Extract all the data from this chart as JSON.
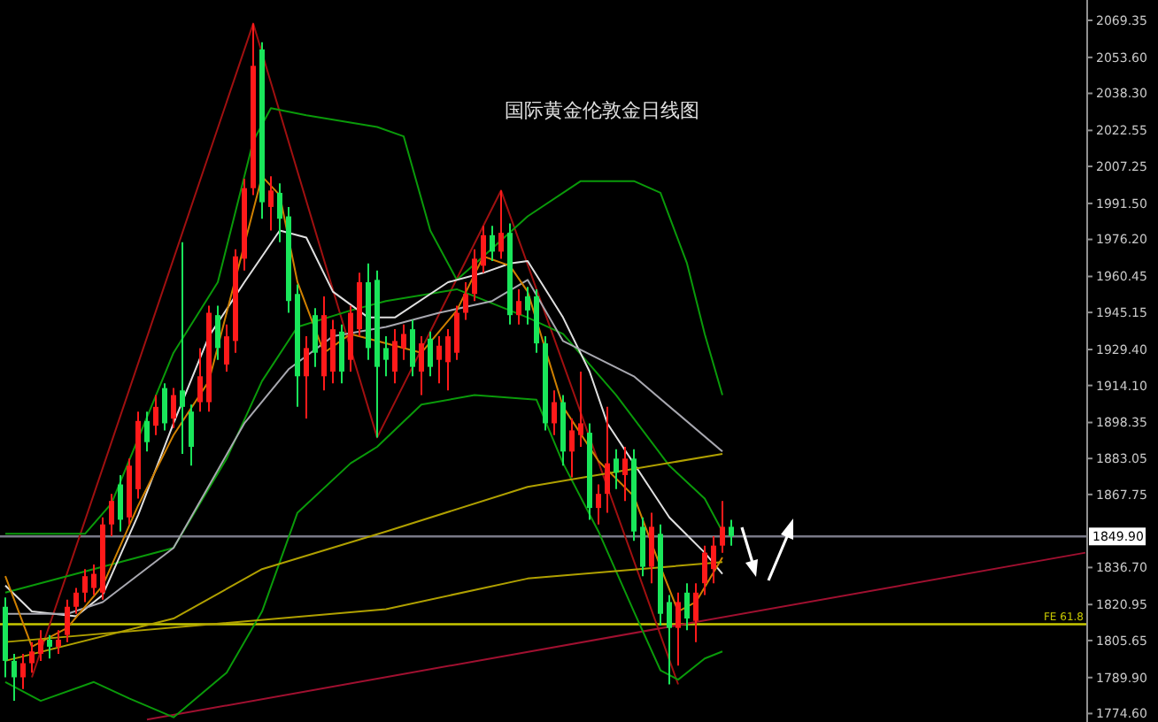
{
  "chart_data": {
    "type": "candlestick",
    "title": "国际黄金伦敦金日线图",
    "categories": [
      null,
      null,
      null,
      null,
      null,
      null,
      null,
      null,
      null,
      null,
      null,
      null,
      null,
      null,
      null,
      null,
      null,
      null,
      null,
      null,
      null,
      null,
      null,
      null,
      null,
      null,
      null,
      null,
      null,
      null,
      null,
      null,
      null,
      null,
      null,
      null,
      null,
      null,
      null,
      null,
      null,
      null,
      null,
      null,
      null,
      null,
      null,
      null,
      null,
      null,
      null,
      null,
      null,
      null,
      null,
      null,
      null,
      null,
      null,
      null,
      null,
      null,
      null,
      null,
      null,
      null,
      null,
      null,
      null,
      null,
      null,
      null,
      null,
      null,
      null,
      null,
      null,
      null,
      null,
      null,
      null,
      null,
      null,
      null,
      null,
      null,
      null,
      null,
      null,
      null,
      null,
      null,
      null,
      null,
      null,
      null,
      null,
      null,
      null,
      null,
      null,
      null,
      null,
      null,
      null,
      null,
      null,
      null,
      null,
      null,
      null,
      null,
      null,
      null,
      null,
      null,
      null,
      null,
      null,
      null,
      null,
      null,
      null
    ],
    "ohlc": [
      [
        1820,
        1824,
        1790,
        1797
      ],
      [
        1797,
        1800,
        1780,
        1790
      ],
      [
        1790,
        1800,
        1785,
        1796
      ],
      [
        1796,
        1805,
        1792,
        1801
      ],
      [
        1800,
        1810,
        1797,
        1806
      ],
      [
        1806,
        1808,
        1798,
        1803
      ],
      [
        1803,
        1810,
        1800,
        1806
      ],
      [
        1808,
        1823,
        1805,
        1820
      ],
      [
        1820,
        1828,
        1817,
        1826
      ],
      [
        1826,
        1836,
        1822,
        1833
      ],
      [
        1828,
        1838,
        1825,
        1834
      ],
      [
        1826,
        1858,
        1823,
        1855
      ],
      [
        1855,
        1868,
        1850,
        1865
      ],
      [
        1872,
        1876,
        1852,
        1857
      ],
      [
        1858,
        1883,
        1855,
        1880
      ],
      [
        1870,
        1903,
        1866,
        1899
      ],
      [
        1899,
        1903,
        1886,
        1890
      ],
      [
        1897,
        1910,
        1893,
        1905
      ],
      [
        1913,
        1915,
        1895,
        1898
      ],
      [
        1900,
        1913,
        1896,
        1910
      ],
      [
        1912,
        1975,
        1885,
        1905
      ],
      [
        1903,
        1906,
        1880,
        1888
      ],
      [
        1907,
        1930,
        1903,
        1918
      ],
      [
        1907,
        1948,
        1903,
        1945
      ],
      [
        1944,
        1948,
        1925,
        1930
      ],
      [
        1923,
        1940,
        1920,
        1935
      ],
      [
        1933,
        1972,
        1928,
        1969
      ],
      [
        1968,
        2002,
        1963,
        1998
      ],
      [
        1998,
        2068,
        1995,
        2050
      ],
      [
        2057,
        2060,
        1985,
        1992
      ],
      [
        1990,
        2003,
        1980,
        1997
      ],
      [
        1996,
        2000,
        1975,
        1985
      ],
      [
        1986,
        1990,
        1945,
        1950
      ],
      [
        1953,
        1957,
        1905,
        1918
      ],
      [
        1918,
        1935,
        1900,
        1930
      ],
      [
        1944,
        1947,
        1922,
        1928
      ],
      [
        1918,
        1952,
        1912,
        1944
      ],
      [
        1920,
        1942,
        1915,
        1938
      ],
      [
        1937,
        1940,
        1915,
        1920
      ],
      [
        1925,
        1948,
        1920,
        1945
      ],
      [
        1938,
        1962,
        1935,
        1958
      ],
      [
        1958,
        1966,
        1925,
        1930
      ],
      [
        1959,
        1963,
        1892,
        1922
      ],
      [
        1930,
        1935,
        1918,
        1925
      ],
      [
        1920,
        1938,
        1915,
        1933
      ],
      [
        1930,
        1940,
        1925,
        1936
      ],
      [
        1938,
        1942,
        1918,
        1922
      ],
      [
        1920,
        1935,
        1910,
        1932
      ],
      [
        1934,
        1937,
        1918,
        1922
      ],
      [
        1925,
        1935,
        1915,
        1931
      ],
      [
        1924,
        1938,
        1912,
        1935
      ],
      [
        1928,
        1948,
        1925,
        1945
      ],
      [
        1945,
        1958,
        1942,
        1953
      ],
      [
        1953,
        1972,
        1950,
        1968
      ],
      [
        1965,
        1982,
        1962,
        1978
      ],
      [
        1978,
        1982,
        1967,
        1971
      ],
      [
        1971,
        1997,
        1968,
        1979
      ],
      [
        1979,
        1983,
        1940,
        1944
      ],
      [
        1944,
        1955,
        1940,
        1950
      ],
      [
        1952,
        1956,
        1940,
        1946
      ],
      [
        1952,
        1955,
        1928,
        1932
      ],
      [
        1932,
        1935,
        1895,
        1898
      ],
      [
        1898,
        1912,
        1893,
        1907
      ],
      [
        1907,
        1910,
        1880,
        1886
      ],
      [
        1886,
        1900,
        1875,
        1895
      ],
      [
        1893,
        1920,
        1888,
        1898
      ],
      [
        1894,
        1898,
        1857,
        1862
      ],
      [
        1862,
        1872,
        1855,
        1868
      ],
      [
        1868,
        1905,
        1860,
        1881
      ],
      [
        1883,
        1887,
        1870,
        1877
      ],
      [
        1876,
        1888,
        1865,
        1883
      ],
      [
        1883,
        1887,
        1848,
        1852
      ],
      [
        1854,
        1858,
        1833,
        1837
      ],
      [
        1837,
        1860,
        1830,
        1854
      ],
      [
        1851,
        1855,
        1812,
        1817
      ],
      [
        1822,
        1825,
        1787,
        1811
      ],
      [
        1811,
        1826,
        1795,
        1822
      ],
      [
        1826,
        1830,
        1810,
        1815
      ],
      [
        1814,
        1830,
        1805,
        1826
      ],
      [
        1830,
        1846,
        1825,
        1843
      ],
      [
        1836,
        1850,
        1830,
        1846
      ],
      [
        1846,
        1865,
        1843,
        1854
      ],
      [
        1854,
        1857,
        1846,
        1850
      ],
      null,
      null,
      null,
      null,
      null,
      null,
      null,
      null,
      null,
      null,
      null,
      null,
      null,
      null,
      null,
      null,
      null,
      null,
      null,
      null,
      null,
      null,
      null,
      null,
      null,
      null,
      null,
      null,
      null,
      null,
      null,
      null,
      null,
      null,
      null,
      null,
      null,
      null,
      null,
      null
    ],
    "colors": [
      "#19e65a",
      "#19e65a",
      "#ff1a1a",
      "#ff1a1a",
      "#ff1a1a",
      "#19e65a",
      "#ff1a1a",
      "#ff1a1a",
      "#ff1a1a",
      "#ff1a1a",
      "#ff1a1a",
      "#ff1a1a",
      "#ff1a1a",
      "#19e65a",
      "#ff1a1a",
      "#ff1a1a",
      "#19e65a",
      "#ff1a1a",
      "#19e65a",
      "#ff1a1a",
      "#19e65a",
      "#19e65a",
      "#ff1a1a",
      "#ff1a1a",
      "#19e65a",
      "#ff1a1a",
      "#ff1a1a",
      "#ff1a1a",
      "#ff1a1a",
      "#19e65a",
      "#ff1a1a",
      "#19e65a",
      "#19e65a",
      "#19e65a",
      "#ff1a1a",
      "#19e65a",
      "#ff1a1a",
      "#ff1a1a",
      "#19e65a",
      "#ff1a1a",
      "#ff1a1a",
      "#19e65a",
      "#19e65a",
      "#19e65a",
      "#ff1a1a",
      "#ff1a1a",
      "#19e65a",
      "#ff1a1a",
      "#19e65a",
      "#ff1a1a",
      "#ff1a1a",
      "#ff1a1a",
      "#ff1a1a",
      "#ff1a1a",
      "#ff1a1a",
      "#19e65a",
      "#ff1a1a",
      "#19e65a",
      "#ff1a1a",
      "#19e65a",
      "#19e65a",
      "#19e65a",
      "#ff1a1a",
      "#19e65a",
      "#ff1a1a",
      "#ff1a1a",
      "#19e65a",
      "#ff1a1a",
      "#ff1a1a",
      "#19e65a",
      "#ff1a1a",
      "#19e65a",
      "#19e65a",
      "#ff1a1a",
      "#19e65a",
      "#19e65a",
      "#ff1a1a",
      "#19e65a",
      "#ff1a1a",
      "#ff1a1a",
      "#ff1a1a",
      "#ff1a1a",
      "#19e65a",
      null,
      null,
      null,
      null,
      null,
      null,
      null,
      null,
      null,
      null,
      null,
      null,
      null,
      null,
      null,
      null,
      null,
      null,
      null,
      null,
      null,
      null,
      null,
      null,
      null,
      null,
      null,
      null,
      null,
      null,
      null,
      null,
      null,
      null,
      null,
      null,
      null,
      null,
      null,
      null
    ],
    "series": [
      {
        "type": "line",
        "color": "#a01010",
        "values": [
          null,
          null,
          null,
          1790,
          null,
          null,
          null,
          null,
          null,
          null,
          null,
          null,
          null,
          null,
          null,
          null,
          null,
          null,
          null,
          null,
          null,
          null,
          null,
          null,
          null,
          null,
          null,
          null,
          2068,
          null,
          null,
          null,
          null,
          null,
          null,
          null,
          null,
          null,
          null,
          null,
          null,
          null,
          1892,
          null,
          null,
          null,
          null,
          null,
          null,
          null,
          null,
          null,
          null,
          null,
          null,
          null,
          1997,
          null,
          null,
          null,
          null,
          null,
          null,
          null,
          null,
          null,
          null,
          null,
          null,
          null,
          null,
          null,
          null,
          null,
          null,
          null,
          1787,
          null,
          null,
          null,
          null,
          null,
          null,
          null,
          null,
          null,
          null,
          null,
          null,
          null,
          null,
          null,
          null,
          null,
          null,
          null,
          null,
          null,
          null,
          null,
          null,
          null,
          null,
          null,
          null,
          null,
          null,
          null,
          null,
          null,
          null,
          null,
          null,
          null,
          null,
          null,
          null,
          null,
          null,
          null,
          null,
          null,
          null
        ]
      },
      {
        "type": "line",
        "color": "#a01030",
        "values": [
          null,
          null,
          null,
          null,
          null,
          null,
          null,
          null,
          null,
          null,
          null,
          null,
          null,
          null,
          null,
          null,
          1772,
          null,
          null,
          null,
          null,
          null,
          null,
          null,
          null,
          null,
          null,
          null,
          null,
          null,
          null,
          null,
          null,
          null,
          null,
          null,
          null,
          null,
          null,
          null,
          null,
          null,
          null,
          null,
          null,
          null,
          null,
          null,
          null,
          null,
          null,
          null,
          null,
          null,
          null,
          null,
          null,
          null,
          null,
          null,
          null,
          null,
          null,
          null,
          null,
          null,
          null,
          null,
          null,
          null,
          null,
          null,
          null,
          null,
          null,
          null,
          null,
          null,
          null,
          null,
          null,
          null,
          null,
          null,
          null,
          null,
          null,
          null,
          null,
          null,
          null,
          null,
          null,
          null,
          null,
          null,
          null,
          null,
          null,
          null,
          null,
          null,
          null,
          null,
          null,
          null,
          null,
          null,
          null,
          null,
          null,
          null,
          null,
          null,
          null,
          null,
          null,
          null,
          null,
          null,
          null,
          null,
          1843
        ]
      },
      {
        "type": "line",
        "color": "#0a9a0a",
        "values": [
          1851,
          null,
          null,
          null,
          null,
          null,
          null,
          null,
          null,
          1851,
          null,
          null,
          1864,
          null,
          null,
          null,
          null,
          null,
          null,
          1928,
          null,
          null,
          null,
          null,
          1958,
          null,
          null,
          null,
          2018,
          null,
          2032,
          null,
          null,
          null,
          2029,
          null,
          null,
          null,
          null,
          null,
          null,
          null,
          2024,
          null,
          null,
          2020,
          null,
          null,
          1980,
          null,
          null,
          1959,
          null,
          null,
          1969,
          null,
          null,
          null,
          null,
          1986,
          null,
          null,
          null,
          null,
          null,
          2001,
          null,
          null,
          null,
          null,
          null,
          2001,
          null,
          null,
          1996,
          null,
          null,
          1966,
          null,
          1936,
          null,
          1910,
          null,
          null,
          null,
          null,
          null,
          null,
          null,
          null,
          null,
          null,
          null,
          null,
          null,
          null,
          null,
          null,
          null,
          null,
          null,
          null,
          null,
          null,
          null,
          null,
          null,
          null,
          null,
          null,
          null,
          null,
          null,
          null,
          null,
          null,
          null,
          null,
          null,
          null,
          null,
          null,
          null
        ]
      },
      {
        "type": "line",
        "color": "#0a9a0a",
        "values": [
          1788,
          null,
          null,
          null,
          1780,
          null,
          null,
          null,
          null,
          null,
          1788,
          null,
          null,
          null,
          1781,
          null,
          null,
          null,
          null,
          1773,
          null,
          null,
          null,
          null,
          null,
          1792,
          null,
          null,
          null,
          1818,
          null,
          null,
          null,
          1860,
          null,
          null,
          null,
          null,
          null,
          1881,
          null,
          null,
          1888,
          null,
          null,
          null,
          null,
          1906,
          null,
          null,
          null,
          null,
          null,
          1910,
          null,
          null,
          null,
          null,
          null,
          null,
          1908,
          null,
          null,
          1881,
          null,
          null,
          null,
          1852,
          null,
          null,
          null,
          1818,
          null,
          null,
          1793,
          null,
          1789,
          null,
          null,
          1798,
          null,
          1801,
          null,
          null,
          null,
          null,
          null,
          null,
          null,
          null,
          null,
          null,
          null,
          null,
          null,
          null,
          null,
          null,
          null,
          null,
          null,
          null,
          null,
          null,
          null,
          null,
          null,
          null,
          null,
          null,
          null,
          null,
          null,
          null,
          null,
          null,
          null,
          null,
          null,
          null,
          null,
          null,
          null
        ]
      },
      {
        "type": "line",
        "color": "#0a9a0a",
        "values": [
          1826,
          null,
          null,
          null,
          null,
          null,
          null,
          null,
          null,
          null,
          null,
          null,
          null,
          null,
          null,
          null,
          null,
          null,
          null,
          1845,
          null,
          null,
          null,
          null,
          null,
          1883,
          null,
          null,
          null,
          1916,
          null,
          null,
          null,
          1939,
          null,
          null,
          null,
          null,
          null,
          1946,
          null,
          null,
          null,
          1950,
          null,
          null,
          null,
          null,
          null,
          null,
          null,
          1955,
          null,
          null,
          null,
          null,
          null,
          null,
          null,
          1943,
          null,
          null,
          null,
          1936,
          null,
          null,
          null,
          null,
          null,
          1910,
          null,
          null,
          null,
          null,
          null,
          1880,
          null,
          null,
          null,
          1866,
          null,
          1852,
          null,
          null,
          null,
          null,
          null,
          null,
          null,
          null,
          null,
          null,
          null,
          null,
          null,
          null,
          null,
          null,
          null,
          null,
          null,
          null,
          null,
          null,
          null,
          null,
          null,
          null,
          null,
          null,
          null,
          null,
          null,
          null,
          null,
          null,
          null,
          null,
          null,
          null,
          null,
          null,
          null
        ]
      },
      {
        "type": "line",
        "color": "#e0e0e0",
        "values": [
          1829,
          null,
          null,
          1818,
          null,
          null,
          null,
          null,
          1816,
          null,
          null,
          1825,
          null,
          null,
          null,
          1859,
          null,
          null,
          null,
          1898,
          null,
          null,
          null,
          1935,
          null,
          null,
          null,
          1958,
          null,
          null,
          null,
          1980,
          null,
          null,
          1977,
          null,
          null,
          1954,
          null,
          null,
          null,
          1943,
          null,
          null,
          1943,
          null,
          null,
          null,
          null,
          null,
          1958,
          null,
          null,
          null,
          1962,
          null,
          null,
          1966,
          null,
          1967,
          null,
          null,
          null,
          1943,
          null,
          null,
          1920,
          null,
          1898,
          null,
          null,
          null,
          null,
          null,
          null,
          1858,
          null,
          null,
          null,
          1843,
          null,
          1834,
          null,
          null,
          null,
          null,
          null,
          null,
          null,
          null,
          null,
          null,
          null,
          null,
          null,
          null,
          null,
          null,
          null,
          null,
          null,
          null,
          null,
          null,
          null,
          null,
          null,
          null,
          null,
          null,
          null,
          null,
          null,
          null,
          null,
          null,
          null,
          null,
          null,
          null,
          null,
          null,
          null
        ]
      },
      {
        "type": "line",
        "color": "#a8a8b0",
        "values": [
          1817,
          null,
          null,
          null,
          null,
          null,
          null,
          1817,
          null,
          null,
          null,
          1822,
          null,
          null,
          null,
          null,
          null,
          null,
          null,
          1845,
          null,
          null,
          null,
          null,
          null,
          null,
          null,
          1898,
          null,
          null,
          null,
          null,
          1921,
          null,
          null,
          null,
          null,
          1935,
          null,
          null,
          null,
          null,
          null,
          1939,
          null,
          null,
          null,
          null,
          null,
          1945,
          null,
          null,
          null,
          null,
          null,
          1950,
          null,
          null,
          null,
          1959,
          null,
          null,
          null,
          1933,
          null,
          null,
          null,
          null,
          null,
          null,
          null,
          1918,
          null,
          null,
          null,
          null,
          null,
          null,
          null,
          null,
          null,
          1886,
          null,
          null,
          null,
          null,
          null,
          null,
          null,
          null,
          null,
          null,
          null,
          null,
          null,
          null,
          null,
          null,
          null,
          null,
          null,
          null,
          null,
          null,
          null,
          null,
          null,
          null,
          null,
          null,
          null,
          null,
          null,
          null,
          null,
          null,
          null,
          null,
          null,
          null,
          null,
          null,
          null
        ]
      },
      {
        "type": "line",
        "color": "#d08000",
        "values": [
          1833,
          null,
          null,
          1803,
          null,
          null,
          null,
          1811,
          null,
          null,
          null,
          1829,
          null,
          null,
          null,
          1863,
          null,
          null,
          null,
          1893,
          null,
          null,
          null,
          1916,
          null,
          null,
          null,
          null,
          null,
          2003,
          null,
          1995,
          null,
          1958,
          null,
          null,
          1928,
          null,
          null,
          1936,
          null,
          null,
          null,
          1932,
          null,
          null,
          null,
          1928,
          null,
          null,
          null,
          1946,
          null,
          null,
          1969,
          null,
          null,
          1965,
          null,
          1954,
          null,
          null,
          null,
          1905,
          null,
          null,
          null,
          1882,
          null,
          null,
          null,
          1867,
          null,
          null,
          1837,
          null,
          1818,
          null,
          1822,
          null,
          null,
          1841,
          null,
          null,
          null,
          null,
          null,
          null,
          null,
          null,
          null,
          null,
          null,
          null,
          null,
          null,
          null,
          null,
          null,
          null,
          null,
          null,
          null,
          null,
          null,
          null,
          null,
          null,
          null,
          null,
          null,
          null,
          null,
          null,
          null,
          null,
          null,
          null,
          null,
          null,
          null,
          null,
          null
        ]
      },
      {
        "type": "line",
        "color": "#b0a000",
        "values": [
          1797,
          null,
          null,
          null,
          null,
          null,
          null,
          null,
          null,
          null,
          null,
          null,
          null,
          null,
          null,
          null,
          null,
          null,
          null,
          1815,
          null,
          null,
          null,
          null,
          null,
          null,
          null,
          null,
          null,
          1836,
          null,
          null,
          null,
          null,
          null,
          null,
          null,
          null,
          null,
          null,
          null,
          null,
          null,
          1852,
          null,
          null,
          null,
          null,
          null,
          null,
          null,
          null,
          null,
          null,
          null,
          null,
          null,
          null,
          null,
          1871,
          null,
          null,
          null,
          null,
          null,
          null,
          null,
          null,
          null,
          null,
          null,
          null,
          null,
          null,
          null,
          null,
          null,
          null,
          null,
          null,
          null,
          1885,
          null,
          null,
          null,
          null,
          null,
          null,
          null,
          null,
          null,
          null,
          null,
          null,
          null,
          null,
          null,
          null,
          null,
          null,
          null,
          null,
          null,
          null,
          null,
          null,
          null,
          null,
          null,
          null,
          null,
          null,
          null,
          null,
          null,
          null,
          null,
          null,
          null,
          null,
          null,
          null,
          null
        ]
      },
      {
        "type": "line",
        "color": "#b0a000",
        "values": [
          1805,
          null,
          null,
          null,
          null,
          null,
          null,
          null,
          null,
          null,
          null,
          null,
          null,
          null,
          null,
          null,
          null,
          null,
          null,
          null,
          null,
          null,
          null,
          null,
          null,
          null,
          null,
          null,
          null,
          null,
          null,
          null,
          null,
          null,
          null,
          null,
          null,
          null,
          null,
          null,
          null,
          null,
          null,
          1819,
          null,
          null,
          null,
          null,
          null,
          null,
          null,
          null,
          null,
          null,
          null,
          null,
          null,
          null,
          null,
          1832,
          null,
          null,
          null,
          null,
          null,
          null,
          null,
          null,
          null,
          null,
          null,
          null,
          null,
          null,
          null,
          null,
          null,
          null,
          null,
          null,
          null,
          1839,
          null,
          null,
          null,
          null,
          null,
          null,
          null,
          null,
          null,
          null,
          null,
          null,
          null,
          null,
          null,
          null,
          null,
          null,
          null,
          null,
          null,
          null,
          null,
          null,
          null,
          null,
          null,
          null,
          null,
          null,
          null,
          null,
          null,
          null,
          null,
          null,
          null,
          null,
          null,
          null,
          null
        ]
      }
    ],
    "ref_lines": [
      {
        "axis": "y",
        "value": 1849.9,
        "label": "1849.90",
        "color": "#7a7a88"
      },
      {
        "axis": "y",
        "value": 1812.6,
        "label": "FE 61.8",
        "color": "#c8c800"
      }
    ],
    "ylim": [
      1771,
      2078
    ],
    "yticks": [
      {
        "value": 2069.35,
        "label": "2069.35"
      },
      {
        "value": 2053.6,
        "label": "2053.60"
      },
      {
        "value": 2038.3,
        "label": "2038.30"
      },
      {
        "value": 2022.55,
        "label": "2022.55"
      },
      {
        "value": 2007.25,
        "label": "2007.25"
      },
      {
        "value": 1991.5,
        "label": "1991.50"
      },
      {
        "value": 1976.2,
        "label": "1976.20"
      },
      {
        "value": 1960.45,
        "label": "1960.45"
      },
      {
        "value": 1945.15,
        "label": "1945.15"
      },
      {
        "value": 1929.4,
        "label": "1929.40"
      },
      {
        "value": 1914.1,
        "label": "1914.10"
      },
      {
        "value": 1898.35,
        "label": "1898.35"
      },
      {
        "value": 1883.05,
        "label": "1883.05"
      },
      {
        "value": 1867.75,
        "label": "1867.75"
      },
      {
        "value": 1836.7,
        "label": "1836.70"
      },
      {
        "value": 1820.95,
        "label": "1820.95"
      },
      {
        "value": 1805.65,
        "label": "1805.65"
      },
      {
        "value": 1789.9,
        "label": "1789.90"
      },
      {
        "value": 1774.6,
        "label": "1774.60"
      }
    ],
    "tick_labels": "y"
  }
}
